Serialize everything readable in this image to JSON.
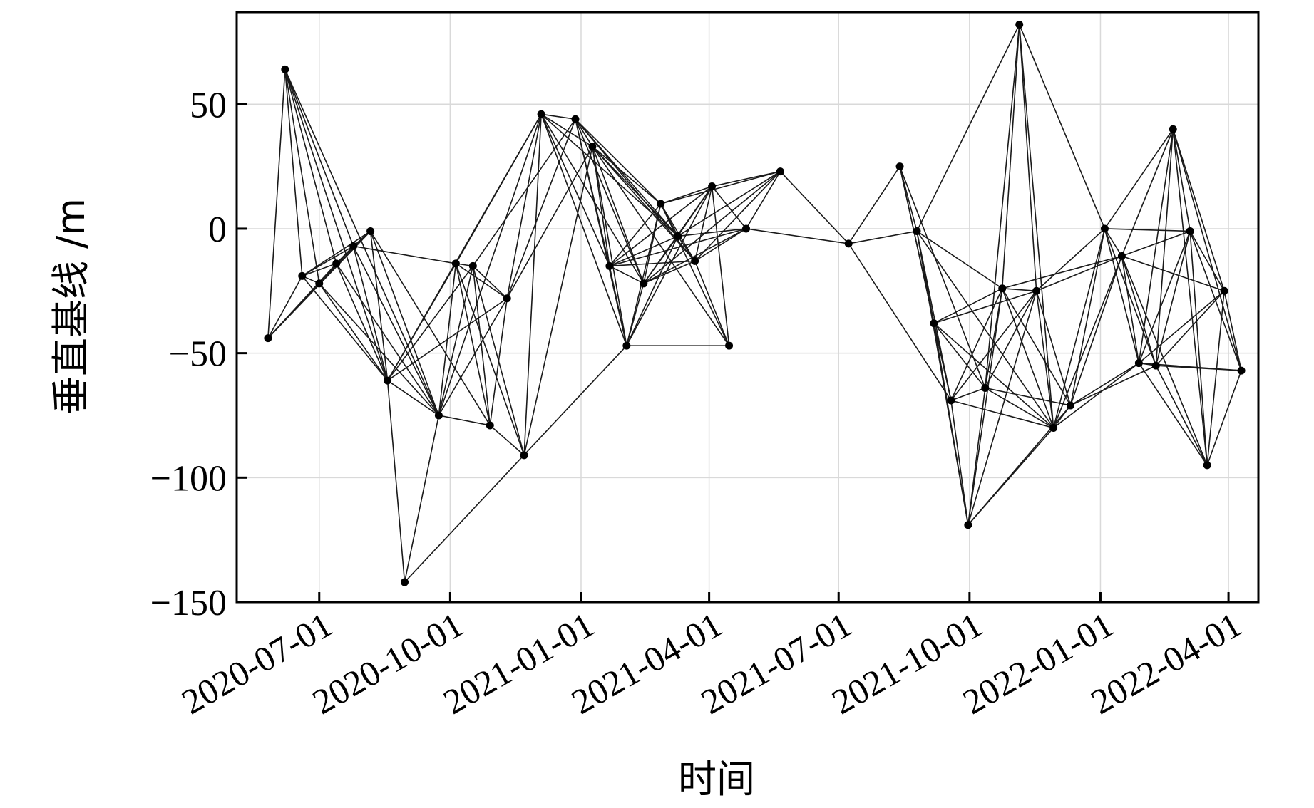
{
  "chart_data": {
    "type": "scatter",
    "xlabel": "时间",
    "ylabel": "垂直基线 /m",
    "x_type": "date",
    "xlim": [
      "2020-05-04",
      "2022-04-22"
    ],
    "ylim": [
      -150,
      87
    ],
    "grid": true,
    "x_ticks": [
      "2020-07-01",
      "2020-10-01",
      "2021-01-01",
      "2021-04-01",
      "2021-07-01",
      "2021-10-01",
      "2022-01-01",
      "2022-04-01"
    ],
    "y_ticks": [
      50,
      0,
      -50,
      -100,
      -150
    ],
    "y_tick_labels": [
      "50",
      "0",
      "−50",
      "−100",
      "−150"
    ],
    "points": [
      {
        "date": "2020-05-26",
        "y": -44
      },
      {
        "date": "2020-06-07",
        "y": 64
      },
      {
        "date": "2020-06-19",
        "y": -19
      },
      {
        "date": "2020-07-01",
        "y": -22
      },
      {
        "date": "2020-07-13",
        "y": -14
      },
      {
        "date": "2020-07-25",
        "y": -7
      },
      {
        "date": "2020-08-06",
        "y": -1
      },
      {
        "date": "2020-08-18",
        "y": -61
      },
      {
        "date": "2020-08-30",
        "y": -142
      },
      {
        "date": "2020-09-23",
        "y": -75
      },
      {
        "date": "2020-10-05",
        "y": -14
      },
      {
        "date": "2020-10-17",
        "y": -15
      },
      {
        "date": "2020-10-29",
        "y": -79
      },
      {
        "date": "2020-11-10",
        "y": -28
      },
      {
        "date": "2020-11-22",
        "y": -91
      },
      {
        "date": "2020-12-04",
        "y": 46
      },
      {
        "date": "2020-12-28",
        "y": 44
      },
      {
        "date": "2021-01-09",
        "y": 33
      },
      {
        "date": "2021-01-21",
        "y": -15
      },
      {
        "date": "2021-02-02",
        "y": -47
      },
      {
        "date": "2021-02-14",
        "y": -22
      },
      {
        "date": "2021-02-26",
        "y": 10
      },
      {
        "date": "2021-03-10",
        "y": -3
      },
      {
        "date": "2021-03-22",
        "y": -13
      },
      {
        "date": "2021-04-03",
        "y": 17
      },
      {
        "date": "2021-04-15",
        "y": -47
      },
      {
        "date": "2021-04-27",
        "y": 0
      },
      {
        "date": "2021-05-21",
        "y": 23
      },
      {
        "date": "2021-07-08",
        "y": -6
      },
      {
        "date": "2021-08-13",
        "y": 25
      },
      {
        "date": "2021-08-25",
        "y": -1
      },
      {
        "date": "2021-09-06",
        "y": -38
      },
      {
        "date": "2021-09-18",
        "y": -69
      },
      {
        "date": "2021-09-30",
        "y": -119
      },
      {
        "date": "2021-10-12",
        "y": -64
      },
      {
        "date": "2021-10-24",
        "y": -24
      },
      {
        "date": "2021-11-05",
        "y": 82
      },
      {
        "date": "2021-11-17",
        "y": -25
      },
      {
        "date": "2021-11-29",
        "y": -80
      },
      {
        "date": "2021-12-11",
        "y": -71
      },
      {
        "date": "2022-01-04",
        "y": 0
      },
      {
        "date": "2022-01-16",
        "y": -11
      },
      {
        "date": "2022-01-28",
        "y": -54
      },
      {
        "date": "2022-02-09",
        "y": -55
      },
      {
        "date": "2022-02-21",
        "y": 40
      },
      {
        "date": "2022-03-05",
        "y": -1
      },
      {
        "date": "2022-03-17",
        "y": -95
      },
      {
        "date": "2022-03-29",
        "y": -25
      },
      {
        "date": "2022-04-10",
        "y": -57
      }
    ],
    "edges": [
      [
        0,
        1
      ],
      [
        0,
        2
      ],
      [
        0,
        3
      ],
      [
        0,
        4
      ],
      [
        0,
        5
      ],
      [
        0,
        6
      ],
      [
        1,
        2
      ],
      [
        1,
        3
      ],
      [
        1,
        4
      ],
      [
        1,
        5
      ],
      [
        1,
        7
      ],
      [
        1,
        9
      ],
      [
        2,
        3
      ],
      [
        2,
        4
      ],
      [
        2,
        5
      ],
      [
        2,
        6
      ],
      [
        2,
        7
      ],
      [
        3,
        4
      ],
      [
        3,
        5
      ],
      [
        3,
        6
      ],
      [
        3,
        7
      ],
      [
        3,
        9
      ],
      [
        4,
        5
      ],
      [
        4,
        6
      ],
      [
        4,
        7
      ],
      [
        4,
        9
      ],
      [
        5,
        6
      ],
      [
        5,
        7
      ],
      [
        5,
        9
      ],
      [
        5,
        10
      ],
      [
        6,
        7
      ],
      [
        6,
        9
      ],
      [
        6,
        12
      ],
      [
        7,
        8
      ],
      [
        7,
        9
      ],
      [
        7,
        10
      ],
      [
        7,
        11
      ],
      [
        7,
        13
      ],
      [
        7,
        15
      ],
      [
        8,
        9
      ],
      [
        8,
        19
      ],
      [
        9,
        10
      ],
      [
        9,
        11
      ],
      [
        9,
        12
      ],
      [
        9,
        13
      ],
      [
        9,
        15
      ],
      [
        10,
        11
      ],
      [
        10,
        12
      ],
      [
        10,
        13
      ],
      [
        10,
        14
      ],
      [
        10,
        15
      ],
      [
        11,
        12
      ],
      [
        11,
        13
      ],
      [
        11,
        14
      ],
      [
        11,
        16
      ],
      [
        12,
        13
      ],
      [
        12,
        14
      ],
      [
        13,
        15
      ],
      [
        13,
        16
      ],
      [
        13,
        17
      ],
      [
        14,
        15
      ],
      [
        14,
        17
      ],
      [
        15,
        16
      ],
      [
        15,
        17
      ],
      [
        15,
        18
      ],
      [
        15,
        19
      ],
      [
        15,
        20
      ],
      [
        15,
        22
      ],
      [
        16,
        17
      ],
      [
        16,
        18
      ],
      [
        16,
        19
      ],
      [
        16,
        20
      ],
      [
        16,
        21
      ],
      [
        16,
        22
      ],
      [
        16,
        23
      ],
      [
        17,
        18
      ],
      [
        17,
        19
      ],
      [
        17,
        20
      ],
      [
        17,
        21
      ],
      [
        17,
        22
      ],
      [
        17,
        23
      ],
      [
        17,
        25
      ],
      [
        18,
        19
      ],
      [
        18,
        20
      ],
      [
        18,
        21
      ],
      [
        18,
        22
      ],
      [
        18,
        23
      ],
      [
        18,
        24
      ],
      [
        18,
        26
      ],
      [
        19,
        20
      ],
      [
        19,
        21
      ],
      [
        19,
        22
      ],
      [
        19,
        24
      ],
      [
        19,
        25
      ],
      [
        20,
        21
      ],
      [
        20,
        22
      ],
      [
        20,
        23
      ],
      [
        20,
        24
      ],
      [
        20,
        26
      ],
      [
        20,
        27
      ],
      [
        21,
        22
      ],
      [
        21,
        23
      ],
      [
        21,
        24
      ],
      [
        21,
        25
      ],
      [
        21,
        27
      ],
      [
        22,
        23
      ],
      [
        22,
        24
      ],
      [
        22,
        26
      ],
      [
        22,
        27
      ],
      [
        23,
        24
      ],
      [
        23,
        25
      ],
      [
        23,
        26
      ],
      [
        23,
        27
      ],
      [
        24,
        25
      ],
      [
        24,
        26
      ],
      [
        24,
        27
      ],
      [
        26,
        27
      ],
      [
        26,
        28
      ],
      [
        27,
        28
      ],
      [
        28,
        29
      ],
      [
        28,
        30
      ],
      [
        28,
        32
      ],
      [
        29,
        30
      ],
      [
        29,
        31
      ],
      [
        29,
        32
      ],
      [
        29,
        34
      ],
      [
        30,
        31
      ],
      [
        30,
        32
      ],
      [
        30,
        33
      ],
      [
        30,
        35
      ],
      [
        30,
        36
      ],
      [
        30,
        38
      ],
      [
        31,
        32
      ],
      [
        31,
        33
      ],
      [
        31,
        34
      ],
      [
        31,
        35
      ],
      [
        31,
        37
      ],
      [
        31,
        38
      ],
      [
        32,
        33
      ],
      [
        32,
        34
      ],
      [
        32,
        35
      ],
      [
        32,
        37
      ],
      [
        32,
        38
      ],
      [
        33,
        34
      ],
      [
        33,
        35
      ],
      [
        33,
        37
      ],
      [
        33,
        38
      ],
      [
        33,
        39
      ],
      [
        34,
        35
      ],
      [
        34,
        36
      ],
      [
        34,
        37
      ],
      [
        34,
        38
      ],
      [
        34,
        39
      ],
      [
        35,
        36
      ],
      [
        35,
        37
      ],
      [
        35,
        38
      ],
      [
        35,
        39
      ],
      [
        35,
        41
      ],
      [
        36,
        37
      ],
      [
        36,
        38
      ],
      [
        36,
        40
      ],
      [
        37,
        38
      ],
      [
        37,
        39
      ],
      [
        37,
        40
      ],
      [
        37,
        41
      ],
      [
        38,
        39
      ],
      [
        38,
        40
      ],
      [
        38,
        41
      ],
      [
        38,
        42
      ],
      [
        39,
        40
      ],
      [
        39,
        41
      ],
      [
        39,
        42
      ],
      [
        39,
        43
      ],
      [
        40,
        41
      ],
      [
        40,
        42
      ],
      [
        40,
        43
      ],
      [
        40,
        44
      ],
      [
        40,
        45
      ],
      [
        41,
        42
      ],
      [
        41,
        43
      ],
      [
        41,
        44
      ],
      [
        41,
        45
      ],
      [
        41,
        46
      ],
      [
        41,
        47
      ],
      [
        42,
        43
      ],
      [
        42,
        44
      ],
      [
        42,
        45
      ],
      [
        42,
        46
      ],
      [
        42,
        47
      ],
      [
        42,
        48
      ],
      [
        43,
        44
      ],
      [
        43,
        45
      ],
      [
        43,
        46
      ],
      [
        43,
        47
      ],
      [
        43,
        48
      ],
      [
        44,
        45
      ],
      [
        44,
        46
      ],
      [
        44,
        47
      ],
      [
        44,
        48
      ],
      [
        45,
        46
      ],
      [
        45,
        47
      ],
      [
        45,
        48
      ],
      [
        46,
        47
      ],
      [
        46,
        48
      ],
      [
        47,
        48
      ]
    ]
  }
}
